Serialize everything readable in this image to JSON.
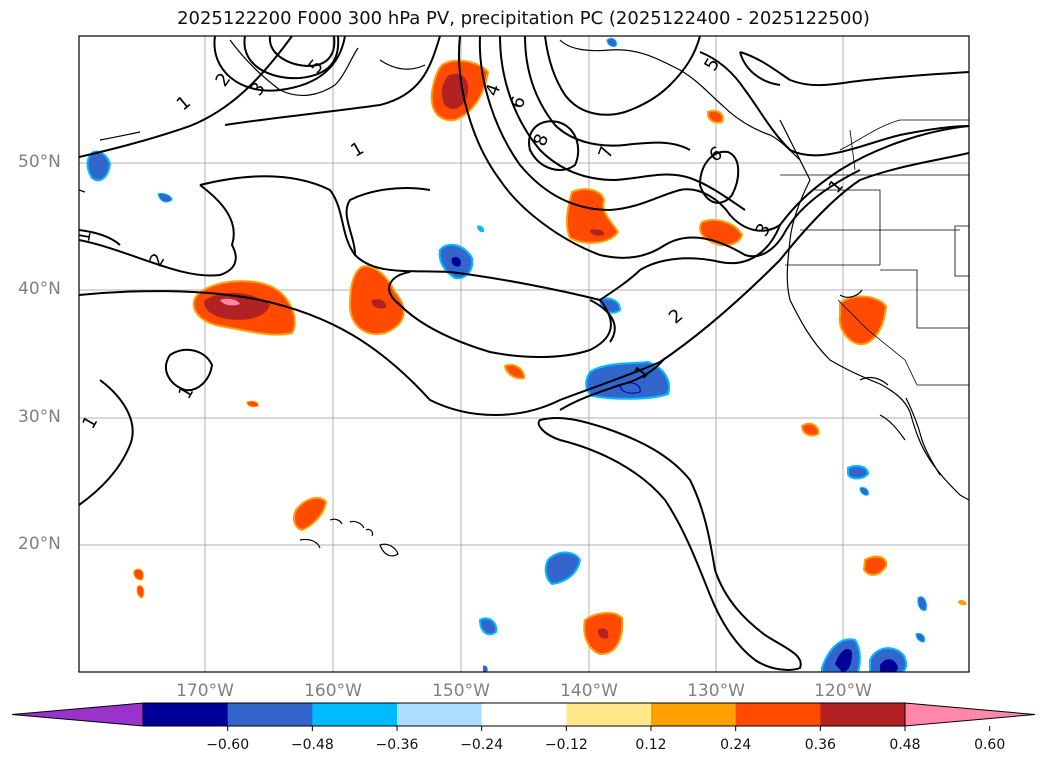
{
  "title": "2025122200 F000 300 hPa PV, precipitation PC (2025122400 - 2025122500)",
  "lat_labels": [
    "50°N",
    "40°N",
    "30°N",
    "20°N"
  ],
  "lon_labels": [
    "170°W",
    "160°W",
    "150°W",
    "140°W",
    "130°W",
    "120°W"
  ],
  "colorbar": {
    "colors": [
      "#9933cc",
      "#000099",
      "#3366cc",
      "#00bbff",
      "#aaddff",
      "#ffffff",
      "#ffe78a",
      "#ffa000",
      "#ff4a00",
      "#b22222",
      "#ff88aa"
    ],
    "ticks": [
      "−0.60",
      "−0.48",
      "−0.36",
      "−0.24",
      "−0.12",
      "0.12",
      "0.24",
      "0.36",
      "0.48",
      "0.60"
    ],
    "extend": "both"
  },
  "contour_labels": [
    "1",
    "2",
    "3",
    "4",
    "5",
    "6",
    "7",
    "8",
    "1",
    "2",
    "1",
    "1",
    "1",
    "2",
    "3",
    "5",
    "6",
    "1",
    "1"
  ]
}
